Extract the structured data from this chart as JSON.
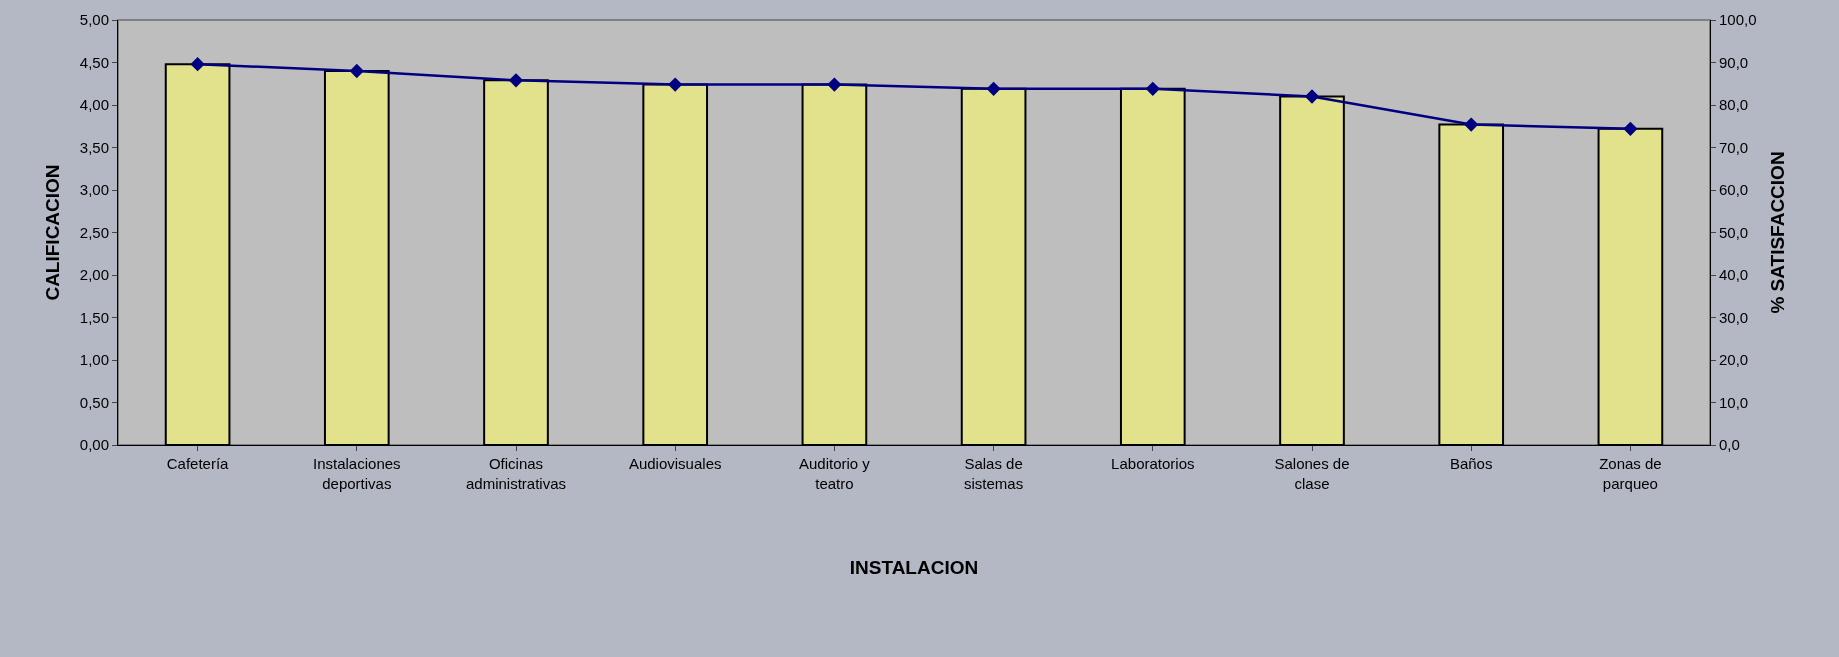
{
  "chart_data": {
    "type": "bar",
    "xlabel": "INSTALACION",
    "ylabel": "CALIFICACION",
    "y2label": "% SATISFACCION",
    "categories": [
      "Cafetería",
      "Instalaciones deportivas",
      "Oficinas administrativas",
      "Audiovisuales",
      "Auditorio y teatro",
      "Salas de sistemas",
      "Laboratorios",
      "Salones de clase",
      "Baños",
      "Zonas de parqueo"
    ],
    "series": [
      {
        "color": "#e2e28c",
        "values": [
          4.48,
          4.4,
          4.29,
          4.24,
          4.24,
          4.19,
          4.19,
          4.1,
          3.77,
          3.72
        ]
      },
      {
        "type": "line",
        "axis": "y2",
        "color": "#000080",
        "marker": "diamond",
        "values": [
          89.6,
          88.0,
          85.8,
          84.8,
          84.8,
          83.8,
          83.8,
          82.0,
          75.4,
          74.4
        ]
      }
    ],
    "ylim": [
      0,
      5
    ],
    "yticks": [
      {
        "value": 0,
        "label": "0,00"
      },
      {
        "value": 0.5,
        "label": "0,50"
      },
      {
        "value": 1,
        "label": "1,00"
      },
      {
        "value": 1.5,
        "label": "1,50"
      },
      {
        "value": 2,
        "label": "2,00"
      },
      {
        "value": 2.5,
        "label": "2,50"
      },
      {
        "value": 3,
        "label": "3,00"
      },
      {
        "value": 3.5,
        "label": "3,50"
      },
      {
        "value": 4,
        "label": "4,00"
      },
      {
        "value": 4.5,
        "label": "4,50"
      },
      {
        "value": 5,
        "label": "5,00"
      }
    ],
    "y2lim": [
      0,
      100
    ],
    "y2ticks": [
      {
        "value": 0,
        "label": "0,0"
      },
      {
        "value": 10,
        "label": "10,0"
      },
      {
        "value": 20,
        "label": "20,0"
      },
      {
        "value": 30,
        "label": "30,0"
      },
      {
        "value": 40,
        "label": "40,0"
      },
      {
        "value": 50,
        "label": "50,0"
      },
      {
        "value": 60,
        "label": "60,0"
      },
      {
        "value": 70,
        "label": "70,0"
      },
      {
        "value": 80,
        "label": "80,0"
      },
      {
        "value": 90,
        "label": "90,0"
      },
      {
        "value": 100,
        "label": "100,0"
      }
    ],
    "grid": false,
    "legend": false
  }
}
